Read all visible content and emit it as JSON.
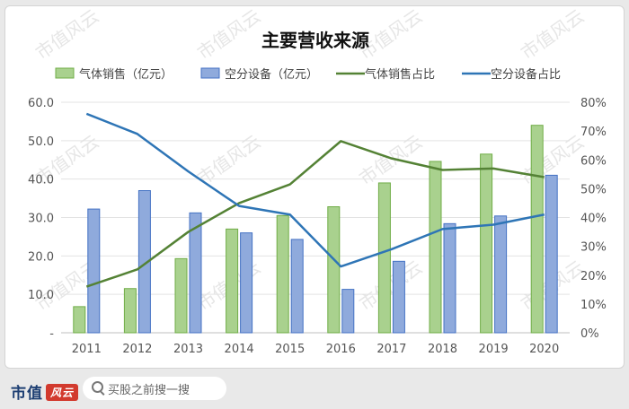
{
  "chart_data": {
    "type": "bar+line",
    "title": "主要营收来源",
    "categories": [
      "2011",
      "2012",
      "2013",
      "2014",
      "2015",
      "2016",
      "2017",
      "2018",
      "2019",
      "2020"
    ],
    "series": [
      {
        "name": "气体销售（亿元）",
        "kind": "bar",
        "axis": "left",
        "color": "#a9d18e",
        "border": "#70ad47",
        "values": [
          6.8,
          11.5,
          19.3,
          27.0,
          30.5,
          32.8,
          39.0,
          44.6,
          46.5,
          54.0
        ]
      },
      {
        "name": "空分设备（亿元）",
        "kind": "bar",
        "axis": "left",
        "color": "#8faadc",
        "border": "#4472c4",
        "values": [
          32.2,
          37.0,
          31.2,
          26.0,
          24.3,
          11.3,
          18.6,
          28.4,
          30.4,
          41.0
        ]
      },
      {
        "name": "气体销售占比",
        "kind": "line",
        "axis": "right",
        "color": "#548235",
        "values": [
          16,
          22,
          35,
          45,
          51.5,
          66.5,
          60.5,
          56.5,
          57,
          54
        ]
      },
      {
        "name": "空分设备占比",
        "kind": "line",
        "axis": "right",
        "color": "#2e75b6",
        "values": [
          76,
          69,
          56,
          44,
          41,
          23,
          29,
          36,
          37.5,
          41
        ]
      }
    ],
    "y_left": {
      "range": [
        0,
        60
      ],
      "ticks": [
        "-",
        "10.0",
        "20.0",
        "30.0",
        "40.0",
        "50.0",
        "60.0"
      ]
    },
    "y_right": {
      "range": [
        0,
        80
      ],
      "ticks": [
        "0%",
        "10%",
        "20%",
        "30%",
        "40%",
        "50%",
        "60%",
        "70%",
        "80%"
      ]
    },
    "grid": true,
    "legend": "top"
  },
  "watermark": "市值风云",
  "footer": {
    "brand": "市值",
    "brand_mark": "风云",
    "search_placeholder": "买股之前搜一搜"
  }
}
